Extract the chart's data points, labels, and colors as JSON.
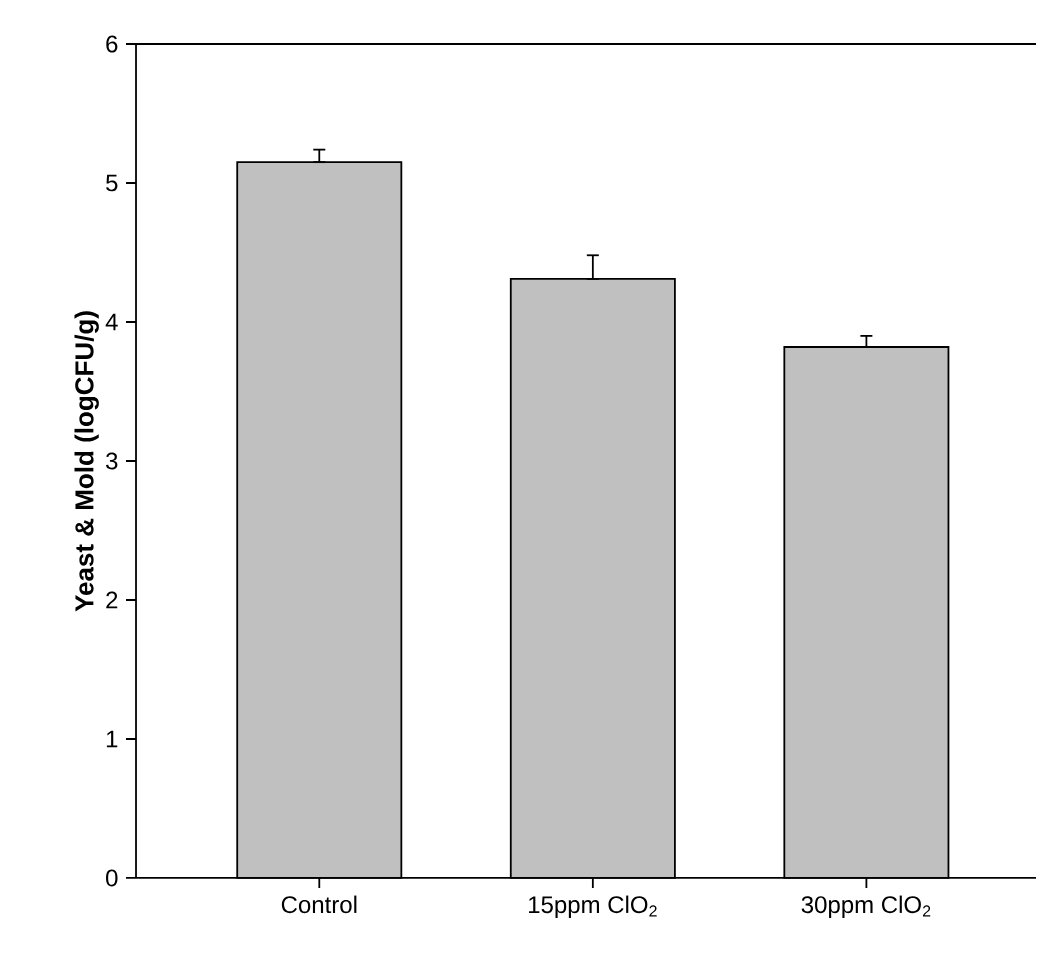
{
  "chart_data": {
    "type": "bar",
    "ylabel": "Yeast & Mold (logCFU/g)",
    "categories": [
      "Control",
      "15ppm ClO$_{2}$",
      "30ppm ClO$_{2}$"
    ],
    "values": [
      5.15,
      4.31,
      3.82
    ],
    "errors": [
      [
        5.15,
        5.24
      ],
      [
        4.31,
        4.48
      ],
      [
        3.82,
        3.9
      ]
    ],
    "color": "#c0c0c0",
    "ylim": [
      0,
      6
    ],
    "yticks": [
      0,
      1,
      2,
      3,
      4,
      5,
      6
    ]
  }
}
